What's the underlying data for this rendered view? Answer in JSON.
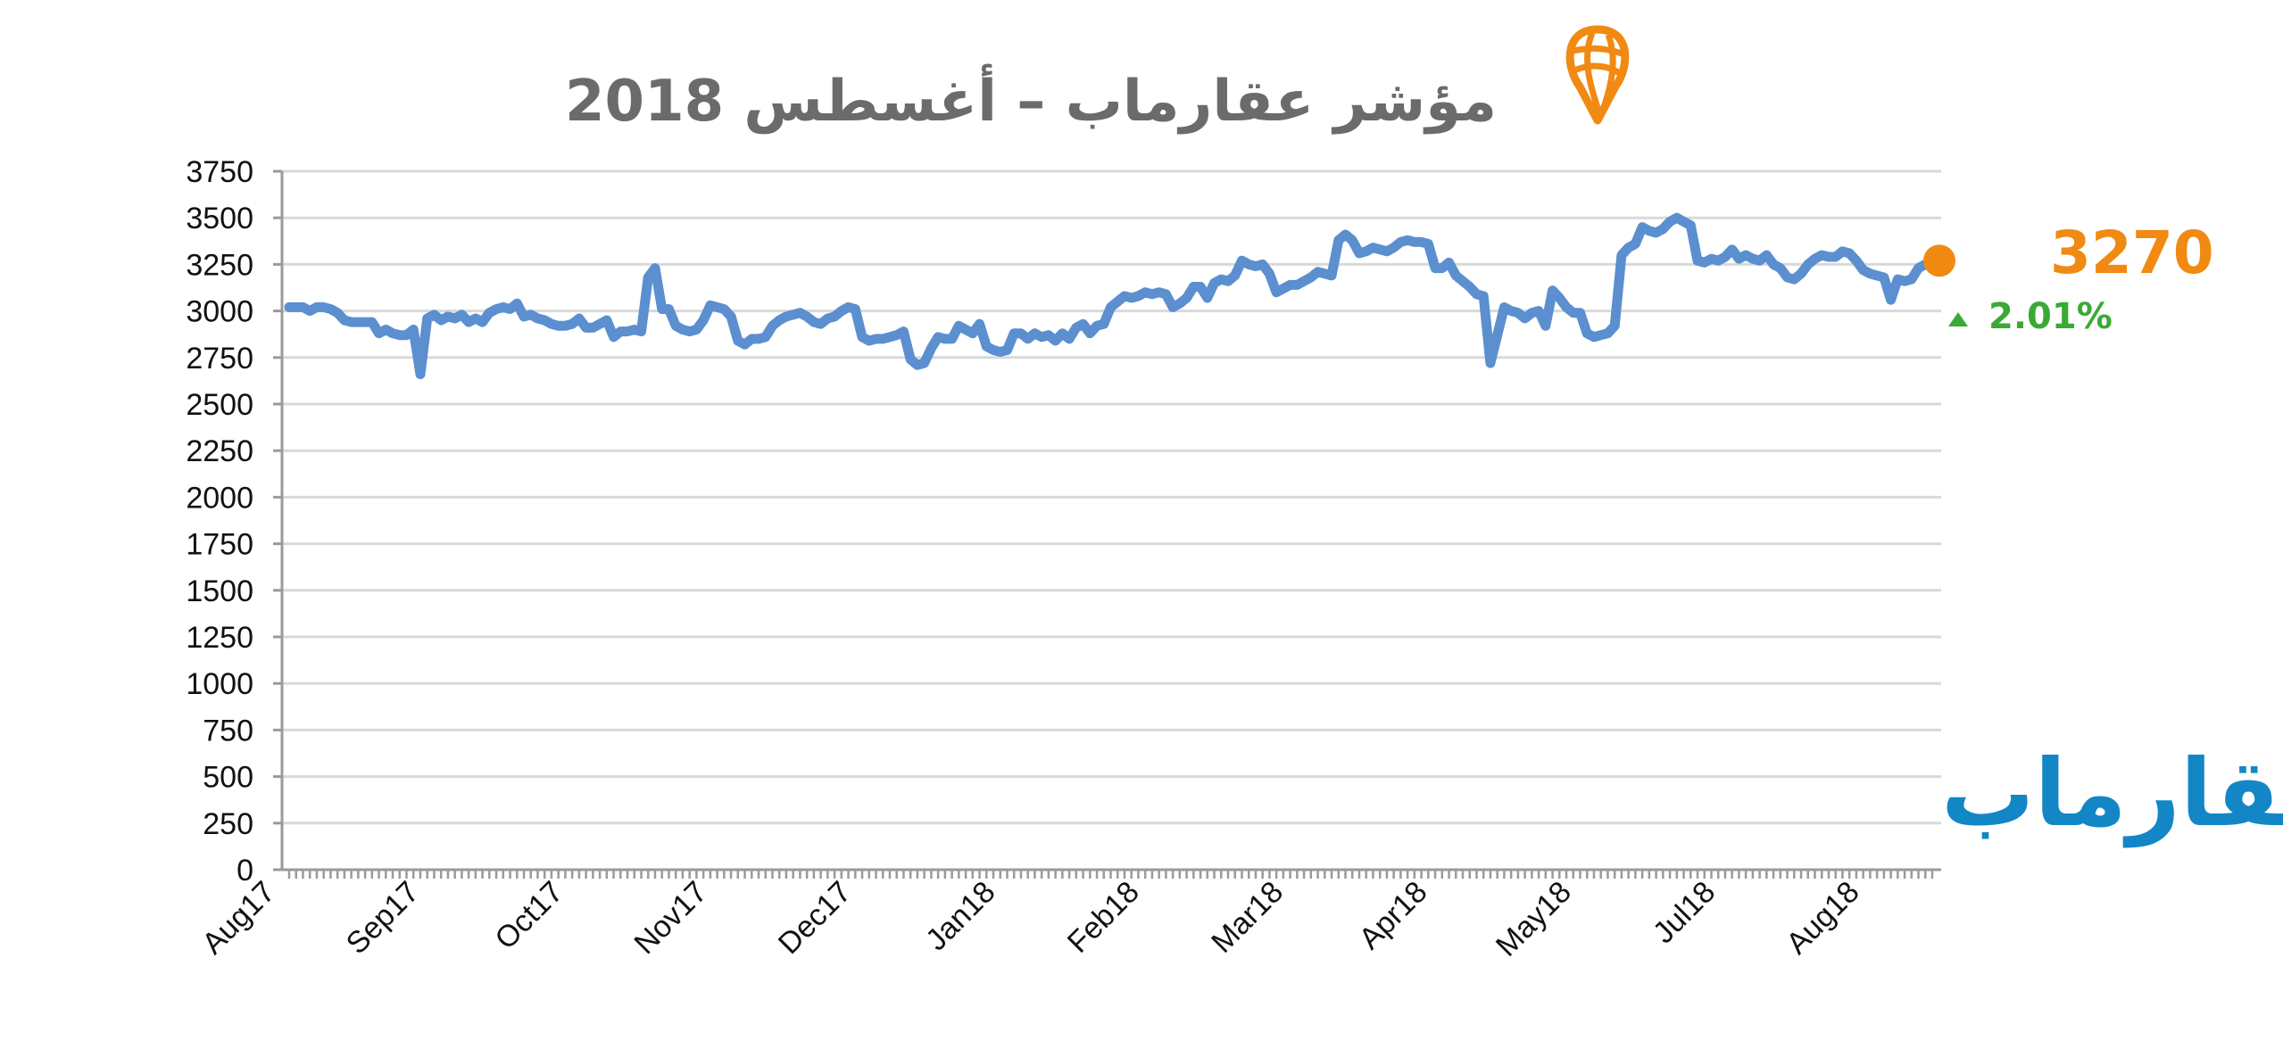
{
  "title": "مؤشر عقارماب – أغسطس 2018",
  "brand": {
    "name": "عقارماب",
    "color": "#1386c6",
    "logo_icon": "map-pin-globe-icon",
    "logo_color": "#f08a12"
  },
  "current": {
    "value": "3270",
    "change": "2.01%",
    "direction": "up",
    "value_color": "#f08a12",
    "change_color": "#3aa935"
  },
  "chart_data": {
    "type": "line",
    "title": "مؤشر عقارماب – أغسطس 2018",
    "xlabel": "",
    "ylabel": "",
    "ylim": [
      0,
      3750
    ],
    "yticks": [
      0,
      250,
      500,
      750,
      1000,
      1250,
      1500,
      1750,
      2000,
      2250,
      2500,
      2750,
      3000,
      3250,
      3500,
      3750
    ],
    "x_tick_labels": [
      "Aug17",
      "Sep17",
      "Oct17",
      "Nov17",
      "Dec17",
      "Jan18",
      "Feb18",
      "Mar18",
      "Apr18",
      "May18",
      "Jul18",
      "Aug18"
    ],
    "grid": true,
    "line_color": "#5b8fcf",
    "values": [
      3020,
      3020,
      3020,
      3000,
      3020,
      3020,
      3010,
      2990,
      2950,
      2940,
      2940,
      2940,
      2940,
      2880,
      2900,
      2880,
      2870,
      2870,
      2900,
      2660,
      2960,
      2980,
      2950,
      2970,
      2960,
      2980,
      2940,
      2960,
      2940,
      2990,
      3010,
      3020,
      3010,
      3040,
      2970,
      2980,
      2960,
      2950,
      2930,
      2920,
      2920,
      2930,
      2960,
      2910,
      2910,
      2930,
      2950,
      2860,
      2890,
      2890,
      2900,
      2890,
      3180,
      3230,
      3010,
      3010,
      2920,
      2900,
      2890,
      2900,
      2950,
      3030,
      3020,
      3010,
      2970,
      2840,
      2820,
      2850,
      2850,
      2860,
      2920,
      2950,
      2970,
      2980,
      2990,
      2970,
      2940,
      2930,
      2960,
      2970,
      3000,
      3020,
      3010,
      2860,
      2840,
      2850,
      2850,
      2860,
      2870,
      2890,
      2740,
      2710,
      2720,
      2800,
      2860,
      2850,
      2850,
      2920,
      2900,
      2880,
      2930,
      2810,
      2790,
      2780,
      2790,
      2880,
      2880,
      2850,
      2880,
      2860,
      2870,
      2840,
      2880,
      2850,
      2910,
      2930,
      2880,
      2920,
      2930,
      3020,
      3050,
      3080,
      3070,
      3080,
      3100,
      3090,
      3100,
      3090,
      3020,
      3040,
      3070,
      3130,
      3130,
      3070,
      3150,
      3170,
      3160,
      3190,
      3270,
      3250,
      3240,
      3250,
      3200,
      3100,
      3120,
      3140,
      3140,
      3160,
      3180,
      3210,
      3200,
      3190,
      3380,
      3410,
      3380,
      3310,
      3320,
      3340,
      3330,
      3320,
      3340,
      3370,
      3380,
      3370,
      3370,
      3360,
      3230,
      3230,
      3260,
      3190,
      3160,
      3130,
      3090,
      3080,
      2720,
      2870,
      3020,
      3000,
      2990,
      2960,
      2990,
      3000,
      2920,
      3110,
      3070,
      3020,
      2990,
      2990,
      2880,
      2860,
      2870,
      2880,
      2920,
      3300,
      3340,
      3360,
      3450,
      3430,
      3420,
      3440,
      3480,
      3500,
      3480,
      3460,
      3270,
      3260,
      3280,
      3270,
      3290,
      3330,
      3280,
      3300,
      3280,
      3270,
      3300,
      3250,
      3230,
      3180,
      3170,
      3200,
      3250,
      3280,
      3300,
      3290,
      3290,
      3320,
      3310,
      3270,
      3220,
      3200,
      3190,
      3180,
      3060,
      3170,
      3160,
      3170,
      3230,
      3250,
      3270
    ]
  }
}
